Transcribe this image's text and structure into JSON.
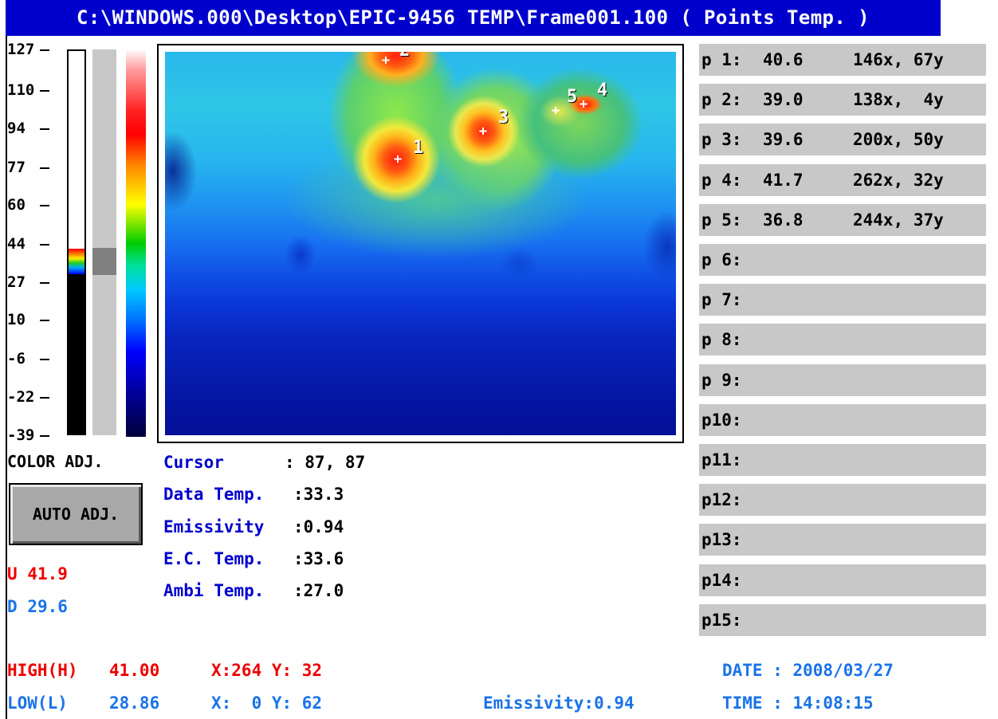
{
  "title": "C:\\WINDOWS.000\\Desktop\\EPIC-9456 TEMP\\Frame001.100 ( Points Temp. )",
  "scale": {
    "ticks": [
      "127",
      "110",
      "94",
      "77",
      "60",
      "44",
      "27",
      "10",
      "-6",
      "-22",
      "-39"
    ]
  },
  "controls": {
    "color_adj": "COLOR ADJ.",
    "auto_adj": "AUTO ADJ.",
    "u_label": "U",
    "u_value": "41.9",
    "d_label": "D",
    "d_value": "29.6"
  },
  "image_points": [
    {
      "label": "1"
    },
    {
      "label": "2"
    },
    {
      "label": "3"
    },
    {
      "label": "4"
    },
    {
      "label": "5"
    }
  ],
  "info": {
    "cursor_label": "Cursor",
    "cursor_value": ": 87, 87",
    "data_temp_label": "Data Temp.",
    "data_temp_value": ":33.3",
    "emissivity_label": "Emissivity",
    "emissivity_value": ":0.94",
    "ec_temp_label": "E.C. Temp.",
    "ec_temp_value": ":33.6",
    "ambi_temp_label": "Ambi Temp.",
    "ambi_temp_value": ":27.0"
  },
  "points": [
    {
      "label": "p 1:",
      "temp": "40.6",
      "coord": "146x, 67y"
    },
    {
      "label": "p 2:",
      "temp": "39.0",
      "coord": "138x,  4y"
    },
    {
      "label": "p 3:",
      "temp": "39.6",
      "coord": "200x, 50y"
    },
    {
      "label": "p 4:",
      "temp": "41.7",
      "coord": "262x, 32y"
    },
    {
      "label": "p 5:",
      "temp": "36.8",
      "coord": "244x, 37y"
    },
    {
      "label": "p 6:",
      "temp": "",
      "coord": ""
    },
    {
      "label": "p 7:",
      "temp": "",
      "coord": ""
    },
    {
      "label": "p 8:",
      "temp": "",
      "coord": ""
    },
    {
      "label": "p 9:",
      "temp": "",
      "coord": ""
    },
    {
      "label": "p10:",
      "temp": "",
      "coord": ""
    },
    {
      "label": "p11:",
      "temp": "",
      "coord": ""
    },
    {
      "label": "p12:",
      "temp": "",
      "coord": ""
    },
    {
      "label": "p13:",
      "temp": "",
      "coord": ""
    },
    {
      "label": "p14:",
      "temp": "",
      "coord": ""
    },
    {
      "label": "p15:",
      "temp": "",
      "coord": ""
    }
  ],
  "bottom": {
    "high_label": "HIGH(H)",
    "high_value": "41.00",
    "high_xy": "X:264 Y: 32",
    "low_label": "LOW(L)",
    "low_value": "28.86",
    "low_xy": "X:  0 Y: 62",
    "emissivity": "Emissivity:0.94",
    "date": "DATE : 2008/03/27",
    "time": "TIME : 14:08:15"
  },
  "colors": {
    "title_bg": "#0000cc",
    "label_blue": "#0000cc",
    "high_red": "#ee0000",
    "low_blue": "#1a73e8",
    "panel_gray": "#c8c8c8"
  }
}
